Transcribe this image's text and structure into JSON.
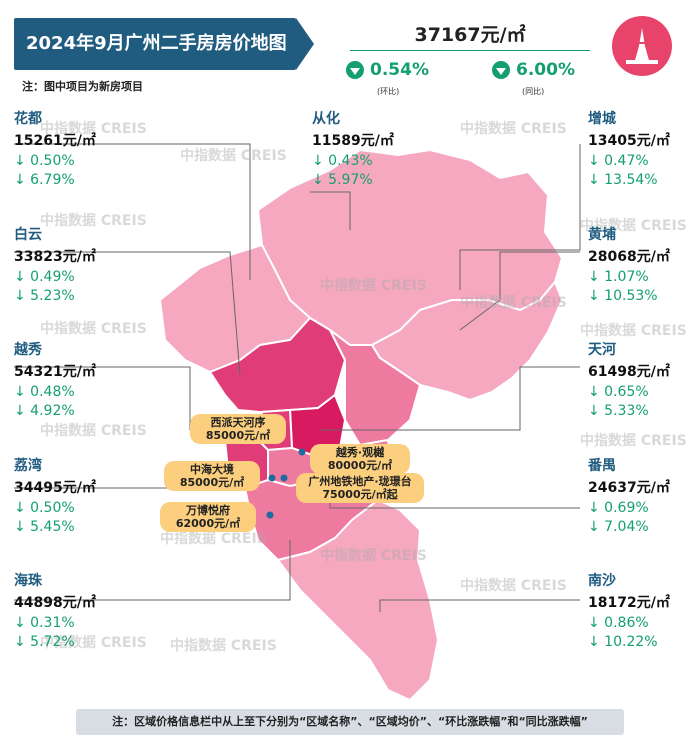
{
  "title": "2024年9月广州二手房房价地图",
  "note": "注：图中项目为新房项目",
  "city": {
    "price": "37167元/㎡",
    "mom": "0.54%",
    "mom_label": "(环比)",
    "yoy": "6.00%",
    "yoy_label": "(同比)"
  },
  "watermark": "中指数据 CREIS",
  "districts": [
    {
      "name": "花都",
      "price": "15261元/㎡",
      "mom": "↓ 0.50%",
      "yoy": "↓ 6.79%"
    },
    {
      "name": "从化",
      "price": "11589元/㎡",
      "mom": "↓ 0.43%",
      "yoy": "↓ 5.97%"
    },
    {
      "name": "增城",
      "price": "13405元/㎡",
      "mom": "↓ 0.47%",
      "yoy": "↓ 13.54%"
    },
    {
      "name": "白云",
      "price": "33823元/㎡",
      "mom": "↓ 0.49%",
      "yoy": "↓ 5.23%"
    },
    {
      "name": "黄埔",
      "price": "28068元/㎡",
      "mom": "↓ 1.07%",
      "yoy": "↓ 10.53%"
    },
    {
      "name": "越秀",
      "price": "54321元/㎡",
      "mom": "↓ 0.48%",
      "yoy": "↓ 4.92%"
    },
    {
      "name": "天河",
      "price": "61498元/㎡",
      "mom": "↓ 0.65%",
      "yoy": "↓ 5.33%"
    },
    {
      "name": "荔湾",
      "price": "34495元/㎡",
      "mom": "↓ 0.50%",
      "yoy": "↓ 5.45%"
    },
    {
      "name": "番禺",
      "price": "24637元/㎡",
      "mom": "↓ 0.69%",
      "yoy": "↓ 7.04%"
    },
    {
      "name": "海珠",
      "price": "44898元/㎡",
      "mom": "↓ 0.31%",
      "yoy": "↓ 5.72%"
    },
    {
      "name": "南沙",
      "price": "18172元/㎡",
      "mom": "↓ 0.86%",
      "yoy": "↓ 10.22%"
    }
  ],
  "projects": [
    {
      "name": "西派天河序",
      "price": "85000元/㎡"
    },
    {
      "name": "越秀·观樾",
      "price": "80000元/㎡"
    },
    {
      "name": "中海大境",
      "price": "85000元/㎡"
    },
    {
      "name": "广州地铁地产·珑璟台",
      "price": "75000元/㎡起"
    },
    {
      "name": "万博悦府",
      "price": "62000元/㎡"
    }
  ],
  "footer": "注：区域价格信息栏中从上至下分别为“区域名称”、“区域均价”、“环比涨跌幅”和“同比涨跌幅”",
  "colors": {
    "title_bg": "#1f5c80",
    "down": "#14a06e",
    "tag": "#fbcf7e",
    "pink_light": "#f5a8c0",
    "pink_mid": "#ee7aa0",
    "pink_dark": "#e03d78",
    "magenta": "#d81b60"
  }
}
